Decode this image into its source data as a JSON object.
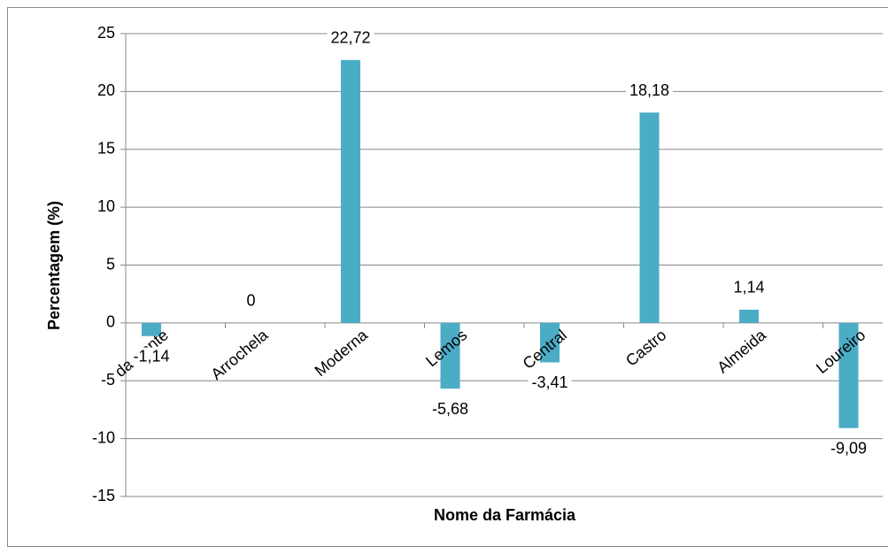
{
  "chart_data": {
    "type": "bar",
    "categories": [
      "da Ponte",
      "Arrochela",
      "Moderna",
      "Lemos",
      "Central",
      "Castro",
      "Almeida",
      "Loureiro"
    ],
    "values": [
      -1.14,
      0,
      22.72,
      -5.68,
      -3.41,
      18.18,
      1.14,
      -9.09
    ],
    "value_labels": [
      "-1,14",
      "0",
      "22,72",
      "-5,68",
      "-3,41",
      "18,18",
      "1,14",
      "-9,09"
    ],
    "color": "#4bacc6",
    "ylim": [
      -15,
      25
    ],
    "yticks": [
      -15,
      -10,
      -5,
      0,
      5,
      10,
      15,
      20,
      25
    ],
    "grid": true,
    "y_label": "Percentagem (%)",
    "x_label": "Nome da Farmácia"
  }
}
